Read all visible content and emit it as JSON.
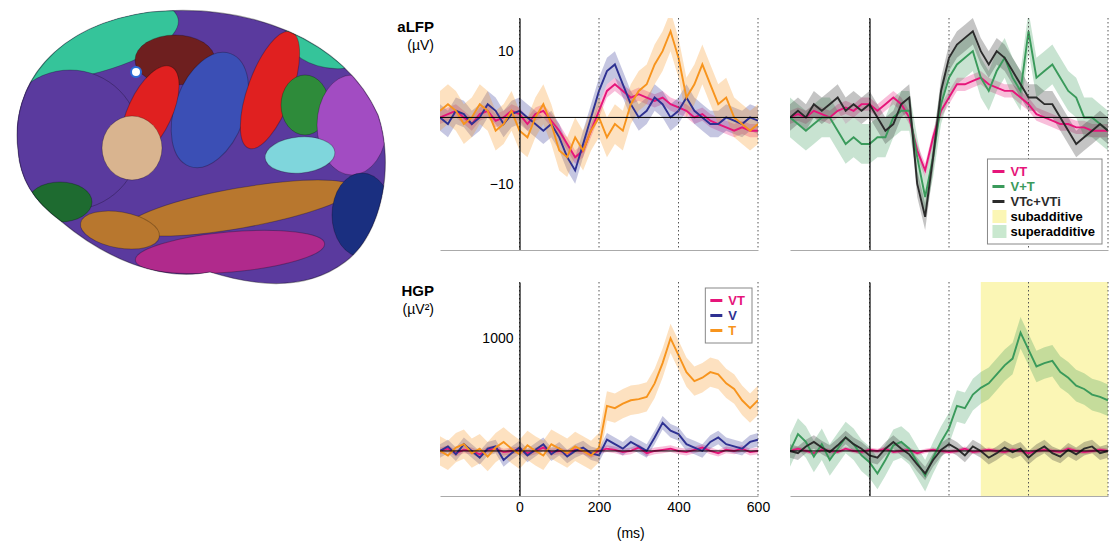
{
  "chart_data": [
    {
      "type": "line",
      "y_label": "aLFP",
      "y_unit": "(µV)",
      "x": [
        -200,
        -180,
        -160,
        -140,
        -120,
        -100,
        -80,
        -60,
        -40,
        -20,
        0,
        20,
        40,
        60,
        80,
        100,
        120,
        140,
        160,
        180,
        200,
        220,
        240,
        260,
        280,
        300,
        320,
        340,
        360,
        380,
        400,
        420,
        440,
        460,
        480,
        500,
        520,
        540,
        560,
        580,
        600
      ],
      "xlim": [
        -200,
        600
      ],
      "xticks": [
        0,
        200,
        400,
        600
      ],
      "ylim": [
        -20,
        15
      ],
      "yticks": [
        {
          "value": -10,
          "label": "−10"
        },
        10
      ],
      "grid": "x",
      "tick_labels": "y",
      "series": [
        {
          "name": "VT",
          "color": "#e6157a",
          "error": 1,
          "values": [
            0,
            0.5,
            1,
            0,
            -1,
            0.5,
            1,
            -0.5,
            0,
            1,
            0.5,
            -1,
            0.5,
            1,
            -0.5,
            -2,
            -4,
            -6,
            -5,
            -2,
            1,
            4,
            5,
            4,
            3,
            3.5,
            3,
            2.5,
            3,
            2,
            1.5,
            1,
            0,
            0.5,
            -0.5,
            -1,
            -1.5,
            -2,
            -1.5,
            -2,
            -2
          ]
        },
        {
          "name": "V",
          "color": "#2e3192",
          "error": 2,
          "values": [
            0,
            -1,
            1,
            0.5,
            -1,
            0,
            2,
            1,
            -1,
            0.5,
            1,
            0,
            -1,
            -2,
            -1,
            -3,
            -6,
            -8,
            -4,
            0,
            4,
            7,
            8,
            5,
            2,
            0,
            1,
            3,
            2,
            0,
            1,
            3,
            1,
            0,
            -1,
            -1,
            0,
            -0.5,
            -1,
            0,
            -0.5
          ]
        },
        {
          "name": "T",
          "color": "#f7941d",
          "error": 3,
          "values": [
            1,
            2,
            1,
            -1,
            0,
            2,
            1,
            -2,
            -1,
            1,
            -2,
            -3,
            0,
            2,
            -1,
            -5,
            -6,
            -3,
            -5,
            -2,
            0,
            -3,
            -1,
            -2,
            2,
            4,
            5,
            8,
            10,
            13,
            9,
            3,
            5,
            8,
            5,
            2,
            3,
            0,
            -1,
            -2,
            -1
          ]
        }
      ]
    },
    {
      "type": "line",
      "x": [
        -200,
        -180,
        -160,
        -140,
        -120,
        -100,
        -80,
        -60,
        -40,
        -20,
        0,
        20,
        40,
        60,
        80,
        100,
        120,
        140,
        160,
        180,
        200,
        220,
        240,
        260,
        280,
        300,
        320,
        340,
        360,
        380,
        400,
        420,
        440,
        460,
        480,
        500,
        520,
        540,
        560,
        580,
        600
      ],
      "xlim": [
        -200,
        600
      ],
      "xticks": [
        0,
        200,
        400,
        600
      ],
      "ylim": [
        -20,
        15
      ],
      "yticks": [
        {
          "value": -10,
          "label": "−10"
        },
        10
      ],
      "grid": "x",
      "tick_labels": false,
      "legend": "lower right",
      "region_legend": [
        {
          "name": "subadditive",
          "color": "#fbf6b5"
        },
        {
          "name": "superadditive",
          "color": "#c9e8cf"
        }
      ],
      "series": [
        {
          "name": "VT",
          "color": "#e6157a",
          "error": 1,
          "values": [
            0,
            0.5,
            0,
            1,
            0.5,
            0,
            1,
            1.5,
            1,
            2,
            2,
            1,
            2,
            3,
            2,
            0,
            -5,
            -8,
            -3,
            1,
            3,
            5,
            5,
            5.5,
            6,
            5,
            4.5,
            4,
            4,
            3,
            2,
            0.5,
            0,
            -0.5,
            -1,
            -1,
            -1.5,
            -1.5,
            -2,
            -2,
            -2
          ]
        },
        {
          "name": "V+T",
          "color": "#3a9a5b",
          "error": 3,
          "values": [
            0,
            -1,
            -2,
            -1,
            0,
            0,
            -2,
            -4,
            -3,
            -4,
            -4,
            -3,
            -3,
            0,
            1,
            1,
            -6,
            -12,
            -6,
            2,
            6,
            8,
            9,
            10,
            6,
            4,
            7,
            9,
            6,
            4,
            13,
            6,
            7,
            8,
            6,
            4,
            3,
            0,
            0,
            -1,
            -2
          ]
        },
        {
          "name": "VTc+VTi",
          "color": "#2b2b2b",
          "error": 2,
          "values": [
            0,
            1,
            0,
            2,
            1,
            2,
            3,
            1,
            2,
            1,
            2,
            0,
            -2,
            -1,
            2,
            3,
            -10,
            -15,
            -6,
            4,
            9,
            11,
            12,
            13,
            10,
            8,
            10,
            9,
            7,
            5,
            3,
            3,
            2,
            2,
            0,
            -2,
            -4,
            -3,
            -2,
            -1,
            -2
          ]
        }
      ]
    },
    {
      "type": "line",
      "y_label": "HGP",
      "y_unit": "(µV²)",
      "x_label": "(ms)",
      "x": [
        -200,
        -180,
        -160,
        -140,
        -120,
        -100,
        -80,
        -60,
        -40,
        -20,
        0,
        20,
        40,
        60,
        80,
        100,
        120,
        140,
        160,
        180,
        200,
        220,
        240,
        260,
        280,
        300,
        320,
        340,
        360,
        380,
        400,
        420,
        440,
        460,
        480,
        500,
        520,
        540,
        560,
        580,
        600
      ],
      "xlim": [
        -200,
        600
      ],
      "xticks": [
        0,
        200,
        400,
        600
      ],
      "ylim": [
        -400,
        1500
      ],
      "yticks": [
        1000
      ],
      "grid": "x",
      "legend": "upper right",
      "series": [
        {
          "name": "VT",
          "color": "#e6157a",
          "error": 30,
          "values": [
            0,
            20,
            -20,
            10,
            0,
            -30,
            10,
            20,
            -10,
            0,
            10,
            -20,
            0,
            30,
            -10,
            0,
            -20,
            10,
            0,
            -30,
            0,
            20,
            10,
            -10,
            0,
            30,
            -20,
            0,
            10,
            20,
            0,
            -10,
            10,
            30,
            0,
            -20,
            10,
            0,
            20,
            -10,
            0
          ]
        },
        {
          "name": "V",
          "color": "#2e3192",
          "error": 60,
          "values": [
            0,
            40,
            -30,
            60,
            0,
            -60,
            20,
            40,
            -80,
            -20,
            30,
            -40,
            10,
            60,
            -30,
            20,
            -50,
            0,
            30,
            -20,
            -40,
            100,
            60,
            20,
            80,
            40,
            0,
            120,
            250,
            180,
            150,
            60,
            30,
            0,
            80,
            120,
            60,
            40,
            20,
            80,
            100
          ]
        },
        {
          "name": "T",
          "color": "#f7941d",
          "error": 130,
          "values": [
            0,
            -40,
            30,
            60,
            -20,
            20,
            -50,
            30,
            80,
            20,
            -30,
            50,
            0,
            -40,
            60,
            20,
            -20,
            40,
            0,
            -40,
            30,
            400,
            380,
            420,
            450,
            460,
            480,
            600,
            780,
            1000,
            850,
            700,
            620,
            650,
            700,
            680,
            600,
            550,
            450,
            380,
            450
          ]
        }
      ]
    },
    {
      "type": "line",
      "x": [
        -200,
        -180,
        -160,
        -140,
        -120,
        -100,
        -80,
        -60,
        -40,
        -20,
        0,
        20,
        40,
        60,
        80,
        100,
        120,
        140,
        160,
        180,
        200,
        220,
        240,
        260,
        280,
        300,
        320,
        340,
        360,
        380,
        400,
        420,
        440,
        460,
        480,
        500,
        520,
        540,
        560,
        580,
        600
      ],
      "xlim": [
        -200,
        600
      ],
      "xticks": [
        0,
        200,
        400,
        600
      ],
      "ylim": [
        -400,
        1500
      ],
      "yticks": [
        1000
      ],
      "grid": "x",
      "tick_labels": false,
      "regions": [
        {
          "type": "subadditive",
          "x": [
            280,
            600
          ]
        }
      ],
      "series": [
        {
          "name": "VT",
          "color": "#e6157a",
          "error": 20,
          "values": [
            0,
            20,
            0,
            -20,
            10,
            0,
            -10,
            20,
            0,
            -10,
            10,
            0,
            20,
            -10,
            0,
            10,
            -20,
            0,
            10,
            0,
            -10,
            0,
            20,
            -10,
            0,
            10,
            0,
            -10,
            10,
            0,
            -20,
            0,
            10,
            0,
            -10,
            20,
            0,
            -10,
            0,
            10,
            0
          ]
        },
        {
          "name": "V+T",
          "color": "#3a9a5b",
          "error": 140,
          "values": [
            0,
            150,
            80,
            -50,
            60,
            -80,
            20,
            120,
            60,
            -40,
            -100,
            -200,
            -80,
            50,
            80,
            20,
            -100,
            -220,
            -60,
            80,
            200,
            400,
            380,
            500,
            560,
            600,
            680,
            760,
            820,
            1050,
            900,
            750,
            780,
            800,
            700,
            650,
            580,
            550,
            500,
            480,
            450
          ]
        },
        {
          "name": "VTc+VTi",
          "color": "#2b2b2b",
          "error": 60,
          "values": [
            0,
            -20,
            40,
            80,
            30,
            -10,
            50,
            120,
            60,
            20,
            -40,
            -60,
            20,
            80,
            20,
            -30,
            -120,
            -200,
            -80,
            10,
            60,
            20,
            -40,
            40,
            0,
            -60,
            -20,
            30,
            -10,
            20,
            -60,
            0,
            40,
            -20,
            -50,
            10,
            -30,
            20,
            40,
            -20,
            0
          ]
        }
      ]
    }
  ]
}
